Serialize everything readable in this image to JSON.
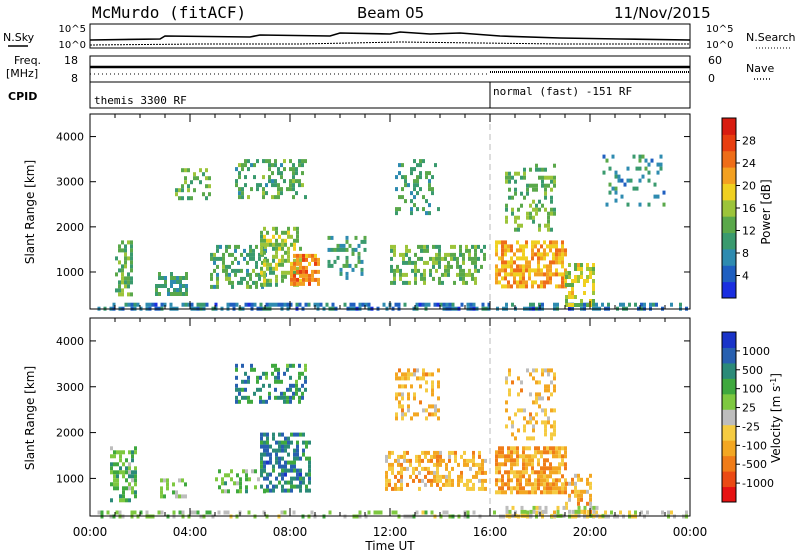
{
  "header": {
    "station": "McMurdo (fitACF)",
    "beam": "Beam 05",
    "date": "11/Nov/2015"
  },
  "top_panel": {
    "nsky_label": "N.Sky",
    "nsearch_label": "N.Search",
    "left_ticks": [
      "10^5",
      "10^0"
    ],
    "right_ticks": [
      "10^5",
      "10^0"
    ],
    "freq_label": "Freq.",
    "freq_unit": "[MHz]",
    "freq_ticks": [
      "18",
      "8"
    ],
    "nave_label": "Nave",
    "nave_ticks": [
      "60",
      "0"
    ],
    "cpid_label": "CPID",
    "cpid_segments": [
      {
        "label": "themis 3300 RF",
        "start_hour": 0,
        "end_hour": 16
      },
      {
        "label": "normal (fast) -151 RF",
        "start_hour": 16,
        "end_hour": 24
      }
    ]
  },
  "chart_data": [
    {
      "type": "heatmap",
      "title": "",
      "xlabel": "Time UT",
      "ylabel": "Slant Range [km]",
      "xlim": [
        0,
        24
      ],
      "ylim": [
        180,
        4500
      ],
      "xticks": [
        "00:00",
        "04:00",
        "08:00",
        "12:00",
        "16:00",
        "20:00",
        "00:00"
      ],
      "yticks": [
        "1000",
        "2000",
        "3000",
        "4000"
      ],
      "colorbar": {
        "label": "Power [dB]",
        "ticks": [
          "28",
          "24",
          "20",
          "16",
          "12",
          "8",
          "4"
        ],
        "range": [
          0,
          30
        ],
        "colors": [
          "#1a2ee0",
          "#1f5fc0",
          "#2e8bb0",
          "#3a9a6e",
          "#5aa84a",
          "#9cc43a",
          "#f0d020",
          "#f3a020",
          "#ee6d18",
          "#e83e10",
          "#d81c10"
        ]
      },
      "scatter_regions": [
        {
          "hours": [
            0.3,
            16.0
          ],
          "range_km": [
            180,
            320
          ],
          "value": 6,
          "density": 0.6
        },
        {
          "hours": [
            16.0,
            23.9
          ],
          "range_km": [
            180,
            320
          ],
          "value": 6,
          "density": 0.45
        },
        {
          "hours": [
            1.0,
            1.7
          ],
          "range_km": [
            500,
            1700
          ],
          "value": 12,
          "density": 0.55
        },
        {
          "hours": [
            2.6,
            3.9
          ],
          "range_km": [
            550,
            1000
          ],
          "value": 10,
          "density": 0.5
        },
        {
          "hours": [
            4.8,
            7.0
          ],
          "range_km": [
            700,
            1600
          ],
          "value": 11,
          "density": 0.5
        },
        {
          "hours": [
            6.8,
            8.4
          ],
          "range_km": [
            700,
            2000
          ],
          "value": 14,
          "density": 0.55
        },
        {
          "hours": [
            8.0,
            9.2
          ],
          "range_km": [
            700,
            1400
          ],
          "value": 22,
          "density": 0.7
        },
        {
          "hours": [
            3.4,
            4.8
          ],
          "range_km": [
            2600,
            3300
          ],
          "value": 12,
          "density": 0.3
        },
        {
          "hours": [
            5.8,
            8.6
          ],
          "range_km": [
            2700,
            3500
          ],
          "value": 11,
          "density": 0.4
        },
        {
          "hours": [
            9.5,
            11.0
          ],
          "range_km": [
            900,
            1800
          ],
          "value": 10,
          "density": 0.35
        },
        {
          "hours": [
            12.0,
            15.8
          ],
          "range_km": [
            800,
            1600
          ],
          "value": 12,
          "density": 0.5
        },
        {
          "hours": [
            12.2,
            14.0
          ],
          "range_km": [
            2300,
            3500
          ],
          "value": 10,
          "density": 0.3
        },
        {
          "hours": [
            16.2,
            19.0
          ],
          "range_km": [
            700,
            1700
          ],
          "value": 20,
          "density": 0.65
        },
        {
          "hours": [
            16.6,
            18.6
          ],
          "range_km": [
            1900,
            3400
          ],
          "value": 12,
          "density": 0.3
        },
        {
          "hours": [
            19.0,
            20.2
          ],
          "range_km": [
            300,
            1200
          ],
          "value": 16,
          "density": 0.55
        },
        {
          "hours": [
            20.5,
            23.0
          ],
          "range_km": [
            2500,
            3600
          ],
          "value": 8,
          "density": 0.15
        }
      ]
    },
    {
      "type": "heatmap",
      "title": "",
      "xlabel": "Time UT",
      "ylabel": "Slant Range [km]",
      "xlim": [
        0,
        24
      ],
      "ylim": [
        180,
        4500
      ],
      "xticks": [
        "00:00",
        "04:00",
        "08:00",
        "12:00",
        "16:00",
        "20:00",
        "00:00"
      ],
      "yticks": [
        "1000",
        "2000",
        "3000",
        "4000"
      ],
      "colorbar": {
        "label": "Velocity [m s^-1]",
        "ticks": [
          "1000",
          "500",
          "100",
          "25",
          "-25",
          "-100",
          "-500",
          "-1000"
        ],
        "range": [
          -1200,
          1200
        ],
        "colors": [
          "#e61212",
          "#eb4a14",
          "#f07c18",
          "#f3a722",
          "#f5cb42",
          "#bdbdbd",
          "#7ec840",
          "#3fa83e",
          "#2b8a78",
          "#2860b0",
          "#1a34c8"
        ]
      },
      "scatter_regions": [
        {
          "hours": [
            0.3,
            16.0
          ],
          "range_km": [
            180,
            300
          ],
          "value": 150,
          "density": 0.35
        },
        {
          "hours": [
            16.0,
            23.9
          ],
          "range_km": [
            180,
            300
          ],
          "value": -60,
          "density": 0.45
        },
        {
          "hours": [
            0.8,
            1.8
          ],
          "range_km": [
            500,
            1700
          ],
          "value": 350,
          "density": 0.55
        },
        {
          "hours": [
            2.8,
            3.8
          ],
          "range_km": [
            600,
            1000
          ],
          "value": 300,
          "density": 0.45
        },
        {
          "hours": [
            5.0,
            7.0
          ],
          "range_km": [
            700,
            1200
          ],
          "value": 300,
          "density": 0.45
        },
        {
          "hours": [
            6.8,
            8.8
          ],
          "range_km": [
            700,
            2000
          ],
          "value": 700,
          "density": 0.5
        },
        {
          "hours": [
            5.8,
            8.6
          ],
          "range_km": [
            2700,
            3500
          ],
          "value": 600,
          "density": 0.4
        },
        {
          "hours": [
            11.8,
            15.8
          ],
          "range_km": [
            800,
            1600
          ],
          "value": -350,
          "density": 0.5
        },
        {
          "hours": [
            12.2,
            14.0
          ],
          "range_km": [
            2300,
            3400
          ],
          "value": -300,
          "density": 0.3
        },
        {
          "hours": [
            16.2,
            19.0
          ],
          "range_km": [
            700,
            1700
          ],
          "value": -450,
          "density": 0.7
        },
        {
          "hours": [
            16.6,
            18.6
          ],
          "range_km": [
            1900,
            3400
          ],
          "value": -300,
          "density": 0.35
        },
        {
          "hours": [
            19.0,
            20.0
          ],
          "range_km": [
            300,
            1100
          ],
          "value": -300,
          "density": 0.5
        },
        {
          "hours": [
            16.5,
            20.5
          ],
          "range_km": [
            180,
            400
          ],
          "value": 60,
          "density": 0.5
        }
      ]
    }
  ]
}
